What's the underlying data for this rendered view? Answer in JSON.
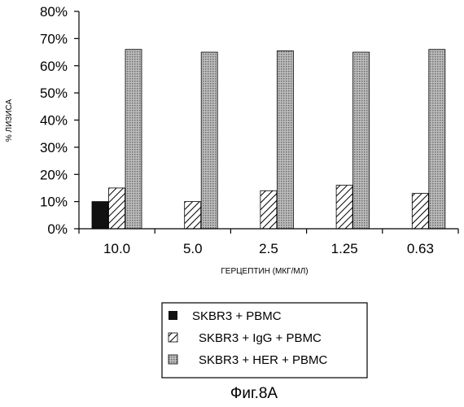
{
  "chart_data": {
    "type": "bar",
    "categories": [
      "10.0",
      "5.0",
      "2.5",
      "1.25",
      "0.63"
    ],
    "series": [
      {
        "name": "SKBR3 + PBMC",
        "values": [
          10,
          0,
          0,
          0,
          0
        ]
      },
      {
        "name": "SKBR3 + IgG + PBMC",
        "values": [
          15,
          10,
          14,
          16,
          13
        ]
      },
      {
        "name": "SKBR3 + HER + PBMC",
        "values": [
          66,
          65,
          65.5,
          65,
          66
        ]
      }
    ],
    "ylabel": "% ЛИЗИСА",
    "xlabel": "ГЕРЦЕПТИН (МКГ/МЛ)",
    "ylim": [
      0,
      80
    ],
    "yticks": [
      "0%",
      "10%",
      "20%",
      "30%",
      "40%",
      "50%",
      "60%",
      "70%",
      "80%"
    ],
    "legend_position": "bottom-center",
    "grid": false
  },
  "caption": "Фиг.8А",
  "colors": {
    "series_1": "#111111",
    "series_2_hatch": "#000000",
    "series_3_dots": "#6a6a6a",
    "axis": "#000000"
  }
}
